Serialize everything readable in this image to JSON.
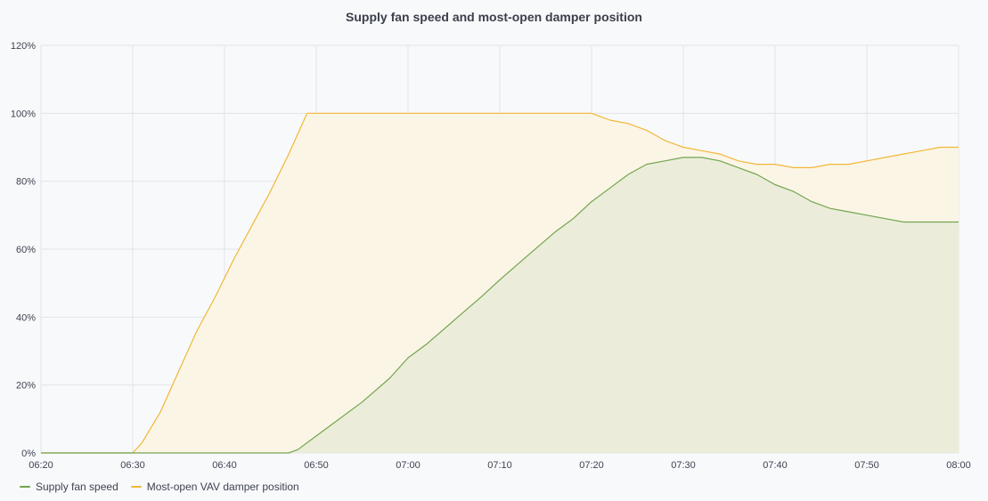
{
  "panel": {
    "title": "Supply fan speed and most-open damper position"
  },
  "chart_data": {
    "type": "area",
    "title": "Supply fan speed and most-open damper position",
    "xlabel": "",
    "ylabel": "",
    "x_ticks": [
      "06:20",
      "06:30",
      "06:40",
      "06:50",
      "07:00",
      "07:10",
      "07:20",
      "07:30",
      "07:40",
      "07:50",
      "08:00"
    ],
    "y_ticks": [
      "0%",
      "20%",
      "40%",
      "60%",
      "80%",
      "100%",
      "120%"
    ],
    "xlim": [
      "06:20",
      "08:00"
    ],
    "ylim": [
      0,
      120
    ],
    "grid": true,
    "legend_position": "bottom-left",
    "series": [
      {
        "name": "Supply fan speed",
        "color": "#73a550",
        "fill": "#ebedda",
        "points": [
          [
            "06:20",
            0
          ],
          [
            "06:30",
            0
          ],
          [
            "06:40",
            0
          ],
          [
            "06:47",
            0
          ],
          [
            "06:48",
            1
          ],
          [
            "06:50",
            5
          ],
          [
            "06:52",
            9
          ],
          [
            "06:55",
            15
          ],
          [
            "06:58",
            22
          ],
          [
            "07:00",
            28
          ],
          [
            "07:02",
            32
          ],
          [
            "07:05",
            39
          ],
          [
            "07:08",
            46
          ],
          [
            "07:10",
            51
          ],
          [
            "07:13",
            58
          ],
          [
            "07:16",
            65
          ],
          [
            "07:18",
            69
          ],
          [
            "07:20",
            74
          ],
          [
            "07:22",
            78
          ],
          [
            "07:24",
            82
          ],
          [
            "07:26",
            85
          ],
          [
            "07:28",
            86
          ],
          [
            "07:30",
            87
          ],
          [
            "07:32",
            87
          ],
          [
            "07:34",
            86
          ],
          [
            "07:36",
            84
          ],
          [
            "07:38",
            82
          ],
          [
            "07:40",
            79
          ],
          [
            "07:42",
            77
          ],
          [
            "07:44",
            74
          ],
          [
            "07:46",
            72
          ],
          [
            "07:48",
            71
          ],
          [
            "07:50",
            70
          ],
          [
            "07:52",
            69
          ],
          [
            "07:54",
            68
          ],
          [
            "07:56",
            68
          ],
          [
            "07:58",
            68
          ],
          [
            "08:00",
            68
          ]
        ]
      },
      {
        "name": "Most-open VAV damper position",
        "color": "#f2b736",
        "fill": "#fbf5e6",
        "points": [
          [
            "06:20",
            0
          ],
          [
            "06:30",
            0
          ],
          [
            "06:31",
            3
          ],
          [
            "06:33",
            12
          ],
          [
            "06:35",
            24
          ],
          [
            "06:37",
            36
          ],
          [
            "06:39",
            46
          ],
          [
            "06:41",
            57
          ],
          [
            "06:43",
            67
          ],
          [
            "06:45",
            77
          ],
          [
            "06:47",
            88
          ],
          [
            "06:49",
            100
          ],
          [
            "06:55",
            100
          ],
          [
            "07:00",
            100
          ],
          [
            "07:10",
            100
          ],
          [
            "07:20",
            100
          ],
          [
            "07:22",
            98
          ],
          [
            "07:24",
            97
          ],
          [
            "07:26",
            95
          ],
          [
            "07:28",
            92
          ],
          [
            "07:30",
            90
          ],
          [
            "07:32",
            89
          ],
          [
            "07:34",
            88
          ],
          [
            "07:36",
            86
          ],
          [
            "07:38",
            85
          ],
          [
            "07:40",
            85
          ],
          [
            "07:42",
            84
          ],
          [
            "07:44",
            84
          ],
          [
            "07:46",
            85
          ],
          [
            "07:48",
            85
          ],
          [
            "07:50",
            86
          ],
          [
            "07:52",
            87
          ],
          [
            "07:54",
            88
          ],
          [
            "07:56",
            89
          ],
          [
            "07:58",
            90
          ],
          [
            "08:00",
            90
          ]
        ]
      }
    ]
  },
  "legend": {
    "items": [
      {
        "label": "Supply fan speed",
        "color": "#73a550"
      },
      {
        "label": "Most-open VAV damper position",
        "color": "#f2b736"
      }
    ]
  }
}
